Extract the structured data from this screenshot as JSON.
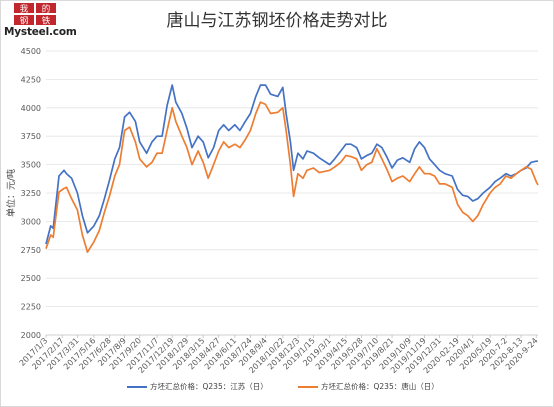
{
  "chart_data": {
    "type": "line",
    "title": "唐山与江苏钢坯价格走势对比",
    "ylabel": "单位：元/吨",
    "ylim": [
      2000,
      4500
    ],
    "yticks": [
      2000,
      2250,
      2500,
      2750,
      3000,
      3250,
      3500,
      3750,
      4000,
      4250,
      4500
    ],
    "xlim": [
      "2017-01-03",
      "2020-09-29"
    ],
    "grid": true,
    "legend_position": "bottom",
    "xticks": [
      "2017/1/3",
      "2017/2/17",
      "2017/3/31",
      "2017/5/16",
      "2017/6/28",
      "2017/8/9",
      "2017/9/20",
      "2017/11/7",
      "2017/12/19",
      "2018/1/29",
      "2018/3/15",
      "2018/4/27",
      "2018/6/11",
      "2018/7/24",
      "2018/9/4",
      "2018/10/22",
      "2018/12/3",
      "2019/1/15",
      "2019/3/1",
      "2019/4/15",
      "2019/5/28",
      "2019/7/10",
      "2019/8/21",
      "2019/10/9",
      "2019/11/19",
      "2019/12/31",
      "2020-02-19",
      "2020/4/1",
      "2020/5/19",
      "2020-7-2",
      "2020-8-13",
      "2020-9-24"
    ],
    "series": [
      {
        "name": "方坯汇总价格：Q235：江苏（日）",
        "color": "#4472C4",
        "points": [
          [
            "2017-01-03",
            2800
          ],
          [
            "2017-01-16",
            2960
          ],
          [
            "2017-01-23",
            2940
          ],
          [
            "2017-02-08",
            3400
          ],
          [
            "2017-02-22",
            3450
          ],
          [
            "2017-03-01",
            3420
          ],
          [
            "2017-03-15",
            3380
          ],
          [
            "2017-03-31",
            3250
          ],
          [
            "2017-04-14",
            3050
          ],
          [
            "2017-04-28",
            2900
          ],
          [
            "2017-05-16",
            2960
          ],
          [
            "2017-05-31",
            3050
          ],
          [
            "2017-06-14",
            3200
          ],
          [
            "2017-06-28",
            3360
          ],
          [
            "2017-07-13",
            3550
          ],
          [
            "2017-07-26",
            3650
          ],
          [
            "2017-08-09",
            3920
          ],
          [
            "2017-08-23",
            3960
          ],
          [
            "2017-09-08",
            3880
          ],
          [
            "2017-09-20",
            3700
          ],
          [
            "2017-10-09",
            3600
          ],
          [
            "2017-10-24",
            3700
          ],
          [
            "2017-11-07",
            3750
          ],
          [
            "2017-11-21",
            3750
          ],
          [
            "2017-12-05",
            4020
          ],
          [
            "2017-12-19",
            4200
          ],
          [
            "2017-12-29",
            4050
          ],
          [
            "2018-01-15",
            3950
          ],
          [
            "2018-01-29",
            3820
          ],
          [
            "2018-02-12",
            3650
          ],
          [
            "2018-03-01",
            3750
          ],
          [
            "2018-03-15",
            3700
          ],
          [
            "2018-03-29",
            3560
          ],
          [
            "2018-04-13",
            3650
          ],
          [
            "2018-04-27",
            3800
          ],
          [
            "2018-05-11",
            3850
          ],
          [
            "2018-05-25",
            3800
          ],
          [
            "2018-06-11",
            3850
          ],
          [
            "2018-06-25",
            3800
          ],
          [
            "2018-07-10",
            3880
          ],
          [
            "2018-07-24",
            3950
          ],
          [
            "2018-08-08",
            4100
          ],
          [
            "2018-08-21",
            4200
          ],
          [
            "2018-09-04",
            4200
          ],
          [
            "2018-09-18",
            4120
          ],
          [
            "2018-10-08",
            4100
          ],
          [
            "2018-10-22",
            4180
          ],
          [
            "2018-10-31",
            3950
          ],
          [
            "2018-11-12",
            3700
          ],
          [
            "2018-11-21",
            3450
          ],
          [
            "2018-12-03",
            3600
          ],
          [
            "2018-12-17",
            3550
          ],
          [
            "2018-12-28",
            3620
          ],
          [
            "2019-01-15",
            3600
          ],
          [
            "2019-01-31",
            3560
          ],
          [
            "2019-03-01",
            3500
          ],
          [
            "2019-03-15",
            3550
          ],
          [
            "2019-04-01",
            3620
          ],
          [
            "2019-04-15",
            3680
          ],
          [
            "2019-04-29",
            3680
          ],
          [
            "2019-05-15",
            3650
          ],
          [
            "2019-05-28",
            3550
          ],
          [
            "2019-06-12",
            3580
          ],
          [
            "2019-06-26",
            3600
          ],
          [
            "2019-07-10",
            3680
          ],
          [
            "2019-07-24",
            3650
          ],
          [
            "2019-08-08",
            3560
          ],
          [
            "2019-08-21",
            3470
          ],
          [
            "2019-09-05",
            3540
          ],
          [
            "2019-09-20",
            3560
          ],
          [
            "2019-10-09",
            3520
          ],
          [
            "2019-10-23",
            3640
          ],
          [
            "2019-11-05",
            3700
          ],
          [
            "2019-11-19",
            3650
          ],
          [
            "2019-12-03",
            3550
          ],
          [
            "2019-12-17",
            3500
          ],
          [
            "2019-12-31",
            3450
          ],
          [
            "2020-01-15",
            3420
          ],
          [
            "2020-02-04",
            3400
          ],
          [
            "2020-02-19",
            3280
          ],
          [
            "2020-03-04",
            3230
          ],
          [
            "2020-03-18",
            3220
          ],
          [
            "2020-04-01",
            3180
          ],
          [
            "2020-04-15",
            3200
          ],
          [
            "2020-04-30",
            3250
          ],
          [
            "2020-05-19",
            3300
          ],
          [
            "2020-06-02",
            3350
          ],
          [
            "2020-06-16",
            3380
          ],
          [
            "2020-07-02",
            3420
          ],
          [
            "2020-07-16",
            3400
          ],
          [
            "2020-07-31",
            3420
          ],
          [
            "2020-08-13",
            3450
          ],
          [
            "2020-08-27",
            3470
          ],
          [
            "2020-09-10",
            3520
          ],
          [
            "2020-09-24",
            3530
          ],
          [
            "2020-09-29",
            3530
          ]
        ]
      },
      {
        "name": "方坯汇总价格：Q235：唐山（日）",
        "color": "#ED7D31",
        "points": [
          [
            "2017-01-03",
            2760
          ],
          [
            "2017-01-16",
            2880
          ],
          [
            "2017-01-23",
            2860
          ],
          [
            "2017-02-08",
            3260
          ],
          [
            "2017-02-22",
            3290
          ],
          [
            "2017-03-01",
            3300
          ],
          [
            "2017-03-15",
            3200
          ],
          [
            "2017-03-31",
            3100
          ],
          [
            "2017-04-14",
            2880
          ],
          [
            "2017-04-28",
            2730
          ],
          [
            "2017-05-16",
            2820
          ],
          [
            "2017-05-31",
            2920
          ],
          [
            "2017-06-14",
            3080
          ],
          [
            "2017-06-28",
            3220
          ],
          [
            "2017-07-13",
            3400
          ],
          [
            "2017-07-26",
            3500
          ],
          [
            "2017-08-09",
            3800
          ],
          [
            "2017-08-23",
            3830
          ],
          [
            "2017-09-08",
            3700
          ],
          [
            "2017-09-20",
            3550
          ],
          [
            "2017-10-09",
            3480
          ],
          [
            "2017-10-24",
            3520
          ],
          [
            "2017-11-07",
            3600
          ],
          [
            "2017-11-21",
            3600
          ],
          [
            "2017-12-05",
            3800
          ],
          [
            "2017-12-19",
            4000
          ],
          [
            "2017-12-29",
            3880
          ],
          [
            "2018-01-15",
            3750
          ],
          [
            "2018-01-29",
            3650
          ],
          [
            "2018-02-12",
            3500
          ],
          [
            "2018-03-01",
            3620
          ],
          [
            "2018-03-15",
            3520
          ],
          [
            "2018-03-29",
            3380
          ],
          [
            "2018-04-13",
            3500
          ],
          [
            "2018-04-27",
            3620
          ],
          [
            "2018-05-11",
            3700
          ],
          [
            "2018-05-25",
            3650
          ],
          [
            "2018-06-11",
            3680
          ],
          [
            "2018-06-25",
            3650
          ],
          [
            "2018-07-10",
            3720
          ],
          [
            "2018-07-24",
            3800
          ],
          [
            "2018-08-08",
            3950
          ],
          [
            "2018-08-21",
            4050
          ],
          [
            "2018-09-04",
            4030
          ],
          [
            "2018-09-18",
            3950
          ],
          [
            "2018-10-08",
            3960
          ],
          [
            "2018-10-22",
            4000
          ],
          [
            "2018-10-31",
            3800
          ],
          [
            "2018-11-12",
            3500
          ],
          [
            "2018-11-21",
            3220
          ],
          [
            "2018-12-03",
            3420
          ],
          [
            "2018-12-17",
            3380
          ],
          [
            "2018-12-28",
            3450
          ],
          [
            "2019-01-15",
            3470
          ],
          [
            "2019-01-31",
            3430
          ],
          [
            "2019-03-01",
            3450
          ],
          [
            "2019-03-15",
            3480
          ],
          [
            "2019-04-01",
            3520
          ],
          [
            "2019-04-15",
            3580
          ],
          [
            "2019-04-29",
            3570
          ],
          [
            "2019-05-15",
            3550
          ],
          [
            "2019-05-28",
            3450
          ],
          [
            "2019-06-12",
            3500
          ],
          [
            "2019-06-26",
            3520
          ],
          [
            "2019-07-10",
            3640
          ],
          [
            "2019-07-24",
            3550
          ],
          [
            "2019-08-08",
            3450
          ],
          [
            "2019-08-21",
            3350
          ],
          [
            "2019-09-05",
            3380
          ],
          [
            "2019-09-20",
            3400
          ],
          [
            "2019-10-09",
            3350
          ],
          [
            "2019-10-23",
            3420
          ],
          [
            "2019-11-05",
            3480
          ],
          [
            "2019-11-19",
            3420
          ],
          [
            "2019-12-03",
            3420
          ],
          [
            "2019-12-17",
            3400
          ],
          [
            "2019-12-31",
            3330
          ],
          [
            "2020-01-15",
            3330
          ],
          [
            "2020-02-04",
            3300
          ],
          [
            "2020-02-19",
            3150
          ],
          [
            "2020-03-04",
            3080
          ],
          [
            "2020-03-18",
            3050
          ],
          [
            "2020-04-01",
            3000
          ],
          [
            "2020-04-15",
            3050
          ],
          [
            "2020-04-30",
            3150
          ],
          [
            "2020-05-19",
            3250
          ],
          [
            "2020-06-02",
            3300
          ],
          [
            "2020-06-16",
            3330
          ],
          [
            "2020-07-02",
            3400
          ],
          [
            "2020-07-16",
            3380
          ],
          [
            "2020-07-31",
            3420
          ],
          [
            "2020-08-13",
            3450
          ],
          [
            "2020-08-27",
            3480
          ],
          [
            "2020-09-10",
            3460
          ],
          [
            "2020-09-24",
            3350
          ],
          [
            "2020-09-29",
            3320
          ]
        ]
      }
    ]
  },
  "logo": {
    "seal_text": "我的钢铁",
    "brand_text": "Mysteel.com",
    "seal_color": "#c1272d"
  }
}
